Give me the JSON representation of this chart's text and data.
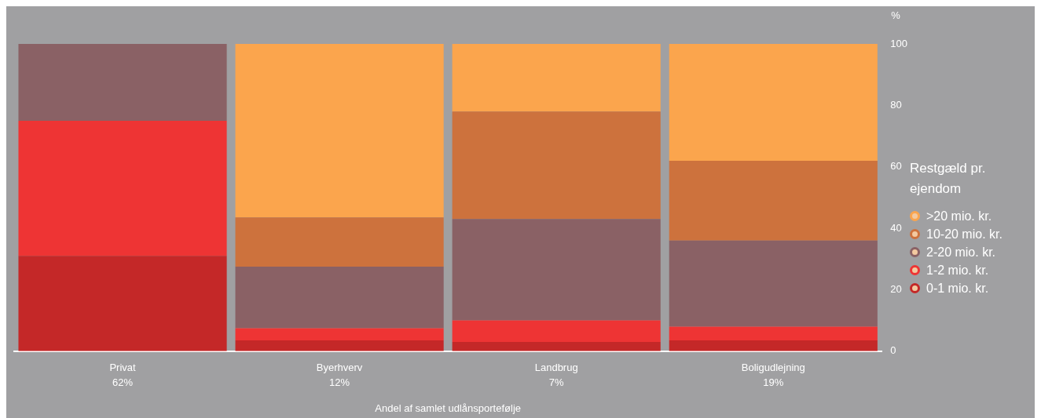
{
  "chart_data": {
    "type": "bar",
    "stacked": true,
    "categories": [
      "Privat",
      "Byerhverv",
      "Landbrug",
      "Boligudlejning"
    ],
    "series": [
      {
        "name": "0-1 mio. kr.",
        "color": "#c42828",
        "values": [
          31,
          3.5,
          3,
          3.5
        ]
      },
      {
        "name": "1-2 mio. kr.",
        "color": "#ee3434",
        "values": [
          44,
          4,
          7,
          4.5
        ]
      },
      {
        "name": "2-20 mio. kr.",
        "color": "#8a6165",
        "values": [
          25,
          20,
          33,
          28
        ]
      },
      {
        "name": "10-20 mio. kr.",
        "color": "#cd723d",
        "values": [
          0,
          16,
          35,
          26
        ]
      },
      {
        "name": ">20 mio. kr.",
        "color": "#fba54d",
        "values": [
          0,
          56.5,
          22,
          38
        ]
      }
    ],
    "ylim": [
      0,
      100
    ],
    "yticks": [
      0,
      20,
      40,
      60,
      80,
      100
    ],
    "ylabel": "%",
    "xlabel": "Andel af samlet udlånsportefølje",
    "legend": "right",
    "legend_title": "Restgæld pr. ejendom",
    "annotations": [
      "62%",
      "12%",
      "7%",
      "19%"
    ],
    "grid": false
  }
}
